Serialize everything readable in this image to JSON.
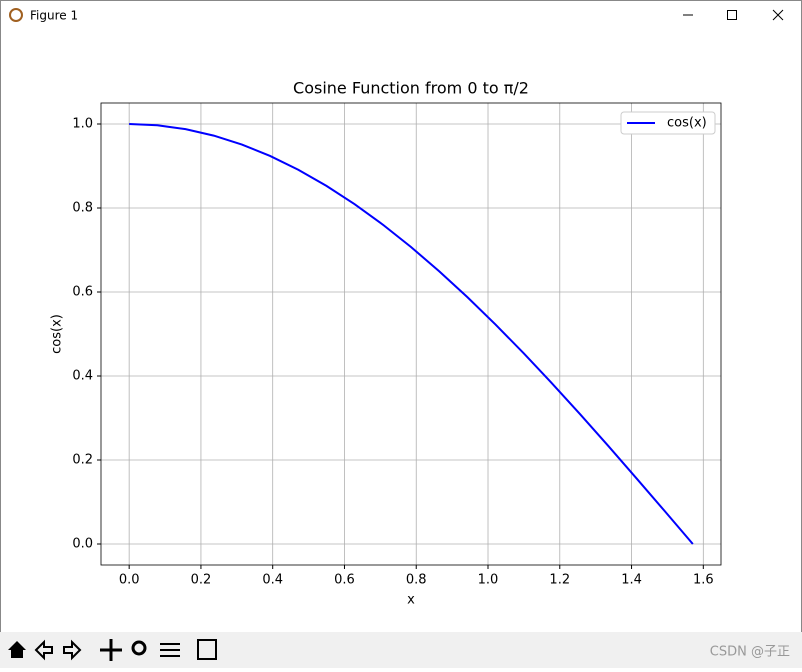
{
  "window": {
    "title": "Figure 1",
    "watermark": "CSDN @子正"
  },
  "chart_data": {
    "type": "line",
    "title": "Cosine Function from 0 to π/2",
    "xlabel": "x",
    "ylabel": "cos(x)",
    "x": [
      0,
      0.0785,
      0.1571,
      0.2356,
      0.3142,
      0.3927,
      0.4712,
      0.5498,
      0.6283,
      0.7069,
      0.7854,
      0.8639,
      0.9425,
      1.021,
      1.0996,
      1.1781,
      1.2566,
      1.3352,
      1.4137,
      1.4923,
      1.5708
    ],
    "series": [
      {
        "name": "cos(x)",
        "color": "#0000ff",
        "values": [
          1,
          0.9969,
          0.9877,
          0.9724,
          0.9511,
          0.9239,
          0.891,
          0.8526,
          0.809,
          0.7604,
          0.7071,
          0.6494,
          0.5878,
          0.5225,
          0.454,
          0.3827,
          0.309,
          0.2334,
          0.1564,
          0.0785,
          0
        ]
      }
    ],
    "xlim": [
      -0.0785,
      1.6493
    ],
    "ylim": [
      -0.05,
      1.05
    ],
    "xticks": [
      {
        "value": 0,
        "label": "0.0"
      },
      0.2,
      0.4,
      0.6,
      0.8,
      {
        "value": 1,
        "label": "1.0"
      },
      1.2,
      1.4,
      1.6
    ],
    "yticks": [
      {
        "value": 0,
        "label": "0.0"
      },
      0.2,
      0.4,
      0.6,
      0.8,
      {
        "value": 1,
        "label": "1.0"
      }
    ],
    "grid": true,
    "legend": "upper right"
  }
}
